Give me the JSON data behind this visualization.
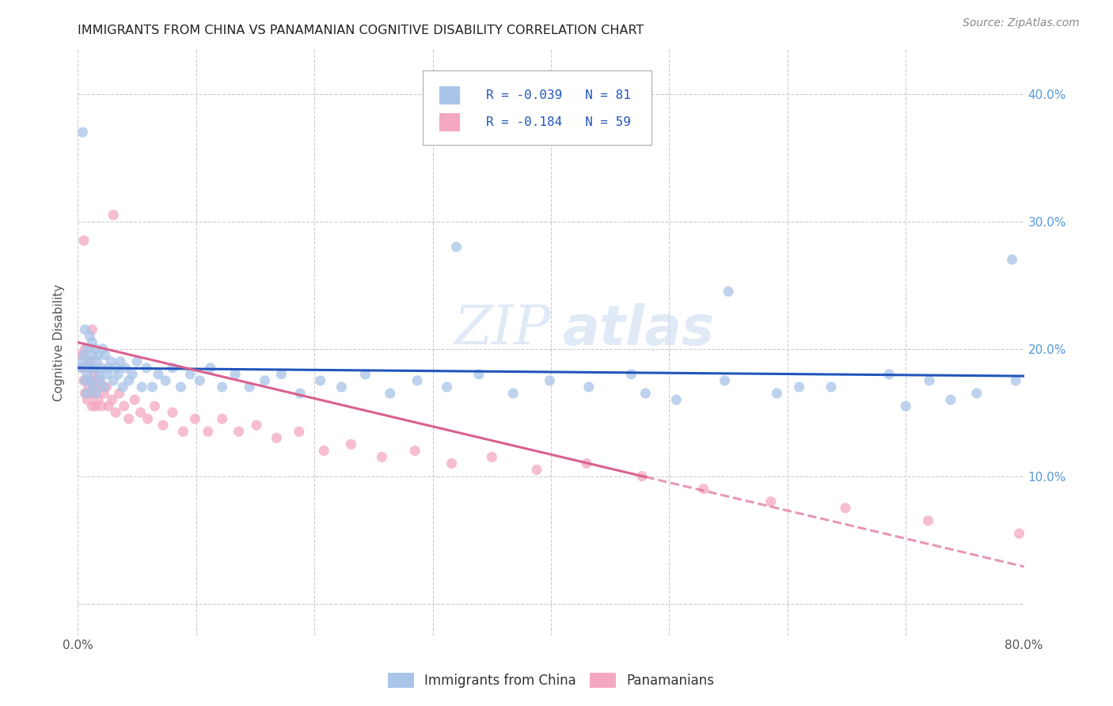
{
  "title": "IMMIGRANTS FROM CHINA VS PANAMANIAN COGNITIVE DISABILITY CORRELATION CHART",
  "source": "Source: ZipAtlas.com",
  "ylabel": "Cognitive Disability",
  "legend_r1": "-0.039",
  "legend_n1": "81",
  "legend_r2": "-0.184",
  "legend_n2": "59",
  "color_blue": "#a8c4e8",
  "color_pink": "#f4a8c0",
  "line_blue": "#2255bb",
  "line_pink": "#d96090",
  "watermark": "ZIPatlas",
  "xlim": [
    0.0,
    0.8
  ],
  "ylim": [
    -0.025,
    0.435
  ],
  "ytick_vals": [
    0.0,
    0.1,
    0.2,
    0.3,
    0.4
  ],
  "ytick_labels": [
    "",
    "10.0%",
    "20.0%",
    "30.0%",
    "40.0%"
  ],
  "xtick_vals": [
    0.0,
    0.1,
    0.2,
    0.3,
    0.4,
    0.5,
    0.6,
    0.7,
    0.8
  ],
  "blue_intercept": 0.185,
  "blue_slope": -0.008,
  "pink_intercept": 0.205,
  "pink_slope": -0.22,
  "blue_x": [
    0.003,
    0.004,
    0.005,
    0.006,
    0.006,
    0.007,
    0.008,
    0.008,
    0.009,
    0.01,
    0.01,
    0.011,
    0.012,
    0.012,
    0.013,
    0.014,
    0.015,
    0.015,
    0.016,
    0.017,
    0.018,
    0.019,
    0.02,
    0.021,
    0.022,
    0.023,
    0.025,
    0.026,
    0.028,
    0.03,
    0.032,
    0.034,
    0.036,
    0.038,
    0.04,
    0.043,
    0.046,
    0.05,
    0.054,
    0.058,
    0.063,
    0.068,
    0.074,
    0.08,
    0.087,
    0.095,
    0.103,
    0.112,
    0.122,
    0.133,
    0.145,
    0.158,
    0.172,
    0.188,
    0.205,
    0.223,
    0.243,
    0.264,
    0.287,
    0.312,
    0.339,
    0.368,
    0.399,
    0.432,
    0.468,
    0.506,
    0.547,
    0.591,
    0.637,
    0.686,
    0.738,
    0.793,
    0.32,
    0.48,
    0.55,
    0.61,
    0.7,
    0.72,
    0.76,
    0.79,
    0.004
  ],
  "blue_y": [
    0.185,
    0.19,
    0.195,
    0.175,
    0.215,
    0.165,
    0.18,
    0.2,
    0.19,
    0.185,
    0.21,
    0.175,
    0.195,
    0.205,
    0.17,
    0.185,
    0.2,
    0.165,
    0.19,
    0.195,
    0.18,
    0.175,
    0.185,
    0.2,
    0.17,
    0.195,
    0.18,
    0.185,
    0.19,
    0.175,
    0.185,
    0.18,
    0.19,
    0.17,
    0.185,
    0.175,
    0.18,
    0.19,
    0.17,
    0.185,
    0.17,
    0.18,
    0.175,
    0.185,
    0.17,
    0.18,
    0.175,
    0.185,
    0.17,
    0.18,
    0.17,
    0.175,
    0.18,
    0.165,
    0.175,
    0.17,
    0.18,
    0.165,
    0.175,
    0.17,
    0.18,
    0.165,
    0.175,
    0.17,
    0.18,
    0.16,
    0.175,
    0.165,
    0.17,
    0.18,
    0.16,
    0.175,
    0.28,
    0.165,
    0.245,
    0.17,
    0.155,
    0.175,
    0.165,
    0.27,
    0.37
  ],
  "pink_x": [
    0.003,
    0.004,
    0.005,
    0.006,
    0.006,
    0.007,
    0.008,
    0.008,
    0.009,
    0.01,
    0.011,
    0.012,
    0.012,
    0.013,
    0.014,
    0.015,
    0.016,
    0.017,
    0.018,
    0.02,
    0.022,
    0.024,
    0.026,
    0.029,
    0.032,
    0.035,
    0.039,
    0.043,
    0.048,
    0.053,
    0.059,
    0.065,
    0.072,
    0.08,
    0.089,
    0.099,
    0.11,
    0.122,
    0.136,
    0.151,
    0.168,
    0.187,
    0.208,
    0.231,
    0.257,
    0.285,
    0.316,
    0.35,
    0.388,
    0.43,
    0.477,
    0.529,
    0.586,
    0.649,
    0.719,
    0.796,
    0.005,
    0.012,
    0.03
  ],
  "pink_y": [
    0.195,
    0.185,
    0.175,
    0.165,
    0.2,
    0.175,
    0.185,
    0.16,
    0.17,
    0.19,
    0.165,
    0.155,
    0.175,
    0.165,
    0.18,
    0.155,
    0.17,
    0.16,
    0.175,
    0.155,
    0.165,
    0.17,
    0.155,
    0.16,
    0.15,
    0.165,
    0.155,
    0.145,
    0.16,
    0.15,
    0.145,
    0.155,
    0.14,
    0.15,
    0.135,
    0.145,
    0.135,
    0.145,
    0.135,
    0.14,
    0.13,
    0.135,
    0.12,
    0.125,
    0.115,
    0.12,
    0.11,
    0.115,
    0.105,
    0.11,
    0.1,
    0.09,
    0.08,
    0.075,
    0.065,
    0.055,
    0.285,
    0.215,
    0.305
  ]
}
